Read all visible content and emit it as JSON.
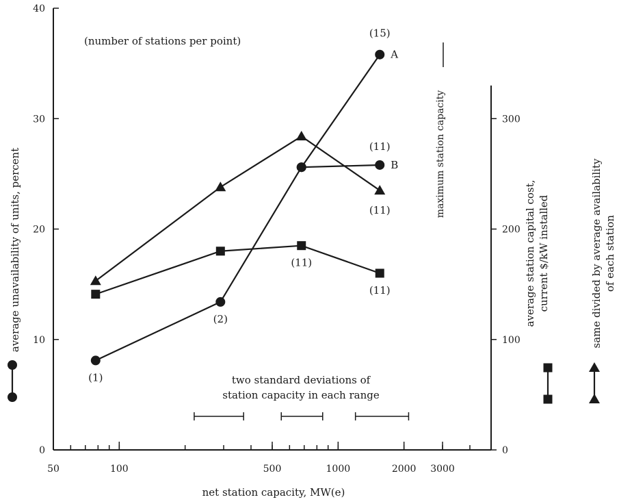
{
  "chart_data": {
    "type": "line",
    "annotation_top": "(number of stations per point)",
    "xlabel": "net station capacity, MW(e)",
    "x_scale": "log",
    "xlim": [
      50,
      5000
    ],
    "x_ticks": [
      "50",
      "100",
      "500",
      "1000",
      "2000",
      "3000"
    ],
    "x_tick_values": [
      50,
      100,
      500,
      1000,
      2000,
      3000
    ],
    "ylabel_left": "average unavailability of units, percent",
    "ylim_left": [
      0,
      40
    ],
    "y_ticks_left": [
      "0",
      "10",
      "20",
      "30",
      "40"
    ],
    "ylabel_right_1": "average station capital cost, current $/kW installed",
    "ylabel_right_2": "same divided by average availability of each station",
    "ylim_right": [
      0,
      400
    ],
    "y_ticks_right": [
      "0",
      "100",
      "200",
      "300"
    ],
    "max_capacity_label": "maximum station capacity",
    "sd_label_line1": "two standard deviations of",
    "sd_label_line2": "station capacity in each range",
    "sd_ranges": [
      [
        220,
        370
      ],
      [
        550,
        850
      ],
      [
        1200,
        2100
      ]
    ],
    "series": [
      {
        "marker": "circle",
        "axis": "left",
        "segments": [
          {
            "x": [
              78,
              290,
              680,
              1550
            ],
            "y": [
              8.1,
              13.4,
              25.6,
              35.8
            ],
            "counts": [
              "(1)",
              "(2)",
              "",
              "(15)"
            ],
            "end_label": "A"
          },
          {
            "x": [
              680,
              1550
            ],
            "y": [
              25.6,
              25.8
            ],
            "counts": [
              "",
              "(11)"
            ],
            "end_label": "B"
          }
        ]
      },
      {
        "marker": "square",
        "axis": "right",
        "segments": [
          {
            "x": [
              78,
              290,
              680,
              1550
            ],
            "y": [
              141,
              180,
              185,
              160
            ],
            "counts": [
              "",
              "",
              "(11)",
              "(11)"
            ],
            "end_label": ""
          }
        ]
      },
      {
        "marker": "triangle",
        "axis": "right",
        "segments": [
          {
            "x": [
              78,
              290,
              680,
              1550
            ],
            "y": [
              153,
              238,
              284,
              235
            ],
            "counts": [
              "",
              "",
              "",
              "(11)"
            ],
            "end_label": ""
          }
        ]
      }
    ]
  }
}
